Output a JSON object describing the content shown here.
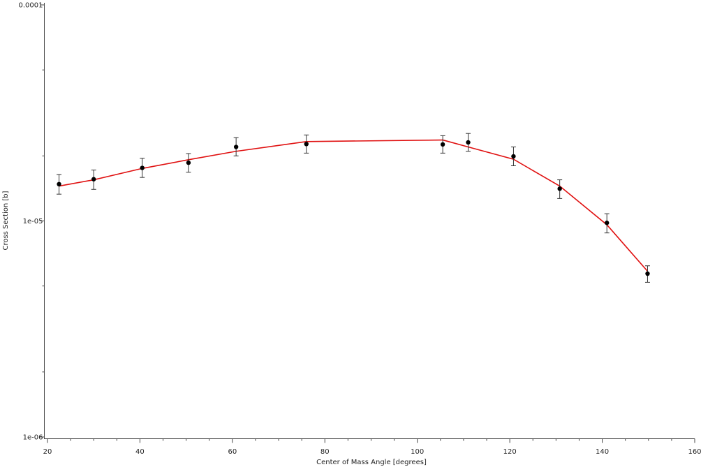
{
  "chart_data": {
    "type": "scatter",
    "title": "",
    "xlabel": "Center of Mass Angle [degrees]",
    "ylabel": "Cross Section [b]",
    "xlim": [
      20,
      160
    ],
    "ylim": [
      1e-06,
      0.0001
    ],
    "yscale": "log",
    "grid": false,
    "legend": "none",
    "x_ticks": [
      20,
      40,
      60,
      80,
      100,
      120,
      140,
      160
    ],
    "x_tick_labels": [
      "20",
      "40",
      "60",
      "80",
      "100",
      "120",
      "140",
      "160"
    ],
    "y_ticks": [
      1e-06,
      1e-05,
      0.0001
    ],
    "y_tick_labels": [
      "1e-06",
      "1e-05",
      "0.0001"
    ],
    "series": [
      {
        "kind": "points-with-errorbars",
        "color": "#000000",
        "x": [
          22.5,
          30.0,
          40.5,
          50.5,
          60.8,
          76.0,
          105.5,
          111.0,
          120.8,
          130.8,
          141.0,
          149.8
        ],
        "y": [
          1.48e-05,
          1.56e-05,
          1.76e-05,
          1.86e-05,
          2.2e-05,
          2.27e-05,
          2.26e-05,
          2.31e-05,
          1.99e-05,
          1.41e-05,
          9.8e-06,
          5.7e-06
        ],
        "err_low": [
          1.33e-05,
          1.4e-05,
          1.59e-05,
          1.68e-05,
          2e-05,
          2.06e-05,
          2.06e-05,
          2.1e-05,
          1.8e-05,
          1.27e-05,
          8.8e-06,
          5.2e-06
        ],
        "err_high": [
          1.64e-05,
          1.72e-05,
          1.95e-05,
          2.05e-05,
          2.43e-05,
          2.5e-05,
          2.48e-05,
          2.54e-05,
          2.2e-05,
          1.55e-05,
          1.08e-05,
          6.2e-06
        ]
      },
      {
        "kind": "line",
        "color": "#e01010",
        "x": [
          22.5,
          30.0,
          40.5,
          50.5,
          60.8,
          76.0,
          105.5,
          111.0,
          120.8,
          130.8,
          141.0,
          149.8
        ],
        "y": [
          1.45e-05,
          1.55e-05,
          1.75e-05,
          1.92e-05,
          2.1e-05,
          2.33e-05,
          2.37e-05,
          2.2e-05,
          1.93e-05,
          1.45e-05,
          9.6e-06,
          5.85e-06
        ]
      }
    ]
  }
}
